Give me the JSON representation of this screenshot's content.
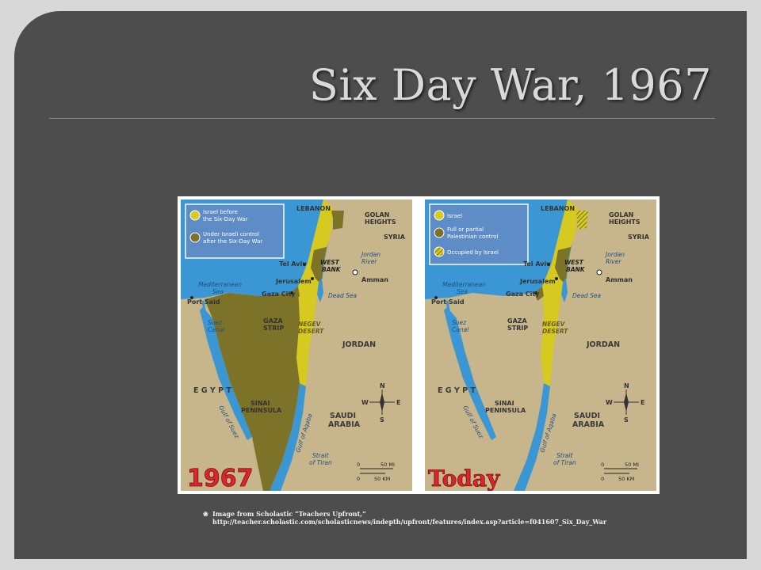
{
  "slide": {
    "title": "Six Day War, 1967",
    "caption_line1": "Image from Scholastic “Teachers Upfront,”",
    "caption_line2": "http://teacher.scholastic.com/scholasticnews/indepth/upfront/features/index.asp?article=f041607_Six_Day_War",
    "bullet_icon": "bullet-icon"
  },
  "colors": {
    "background": "#4d4d4d",
    "title": "#d9d9d9",
    "sea": "#3a97d4",
    "land": "#c7b58c",
    "israel": "#d6c920",
    "occupied": "#7c7228",
    "red_year": "#d8262a"
  },
  "maps": [
    {
      "year_label": "1967",
      "legend": [
        {
          "text1": "Israel before",
          "text2": "the Six-Day War",
          "swatch": "#d6c920"
        },
        {
          "text1": "Under Israeli control",
          "text2": "after the Six-Day War",
          "swatch": "#7c7228"
        }
      ]
    },
    {
      "year_label": "Today",
      "legend": [
        {
          "text1": "Israel",
          "text2": "",
          "swatch": "#d6c920"
        },
        {
          "text1": "Full or partial",
          "text2": "Palestinian control",
          "swatch": "#7c7228"
        },
        {
          "text1": "Occupied by Israel",
          "text2": "",
          "swatch": "hatched"
        }
      ]
    }
  ],
  "places": {
    "lebanon": "LEBANON",
    "golan1": "GOLAN",
    "golan2": "HEIGHTS",
    "syria": "SYRIA",
    "jordan_river1": "Jordan",
    "jordan_river2": "River",
    "tel_aviv": "Tel Aviv",
    "west_bank1": "WEST",
    "west_bank2": "BANK",
    "amman": "Amman",
    "med1": "Mediterranean",
    "med2": "Sea",
    "jerusalem": "Jerusalem",
    "port_said": "Port Said",
    "gaza_city": "Gaza City",
    "dead_sea": "Dead Sea",
    "suez1": "Suez",
    "suez2": "Canal",
    "gaza_strip1": "GAZA",
    "gaza_strip2": "STRIP",
    "negev1": "NEGEV",
    "negev2": "DESERT",
    "jordan": "JORDAN",
    "egypt": "E G Y P T",
    "gulf_suez": "Gulf of Suez",
    "sinai1": "SINAI",
    "sinai2": "PENINSULA",
    "gulf_aqaba": "Gulf of Aqaba",
    "saudi1": "SAUDI",
    "saudi2": "ARABIA",
    "tiran1": "Strait",
    "tiran2": "of Tiran",
    "compass_n": "N",
    "compass_s": "S",
    "compass_e": "E",
    "compass_w": "W",
    "scale_0a": "0",
    "scale_mi": "50 MI",
    "scale_0b": "0",
    "scale_km": "50 KM"
  }
}
